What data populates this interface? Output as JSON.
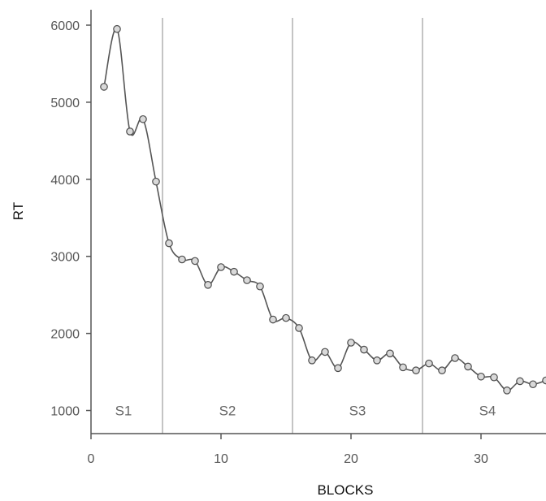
{
  "chart_data": {
    "type": "line",
    "xlabel": "BLOCKS",
    "ylabel": "RT",
    "xlim": [
      0,
      35
    ],
    "ylim": [
      700,
      6200
    ],
    "x_ticks": [
      0,
      10,
      20,
      30
    ],
    "y_ticks": [
      1000,
      2000,
      3000,
      4000,
      5000,
      6000
    ],
    "grid": false,
    "session_dividers": [
      5.5,
      15.5,
      25.5
    ],
    "sessions": [
      {
        "label": "S1",
        "x": 2.5
      },
      {
        "label": "S2",
        "x": 10.5
      },
      {
        "label": "S3",
        "x": 20.5
      },
      {
        "label": "S4",
        "x": 30.5
      }
    ],
    "series": [
      {
        "x": [
          1,
          2,
          3,
          4,
          5,
          6,
          7,
          8,
          9,
          10,
          11,
          12,
          13,
          14,
          15,
          16,
          17,
          18,
          19,
          20,
          21,
          22,
          23,
          24,
          25,
          26,
          27,
          28,
          29,
          30,
          31,
          32,
          33,
          34,
          35
        ],
        "values": [
          5200,
          5950,
          4620,
          4780,
          3970,
          3170,
          2960,
          2940,
          2630,
          2860,
          2800,
          2690,
          2610,
          2180,
          2200,
          2070,
          1650,
          1760,
          1550,
          1880,
          1790,
          1650,
          1740,
          1560,
          1520,
          1610,
          1520,
          1680,
          1570,
          1440,
          1430,
          1260,
          1380,
          1340,
          1390
        ]
      }
    ]
  }
}
